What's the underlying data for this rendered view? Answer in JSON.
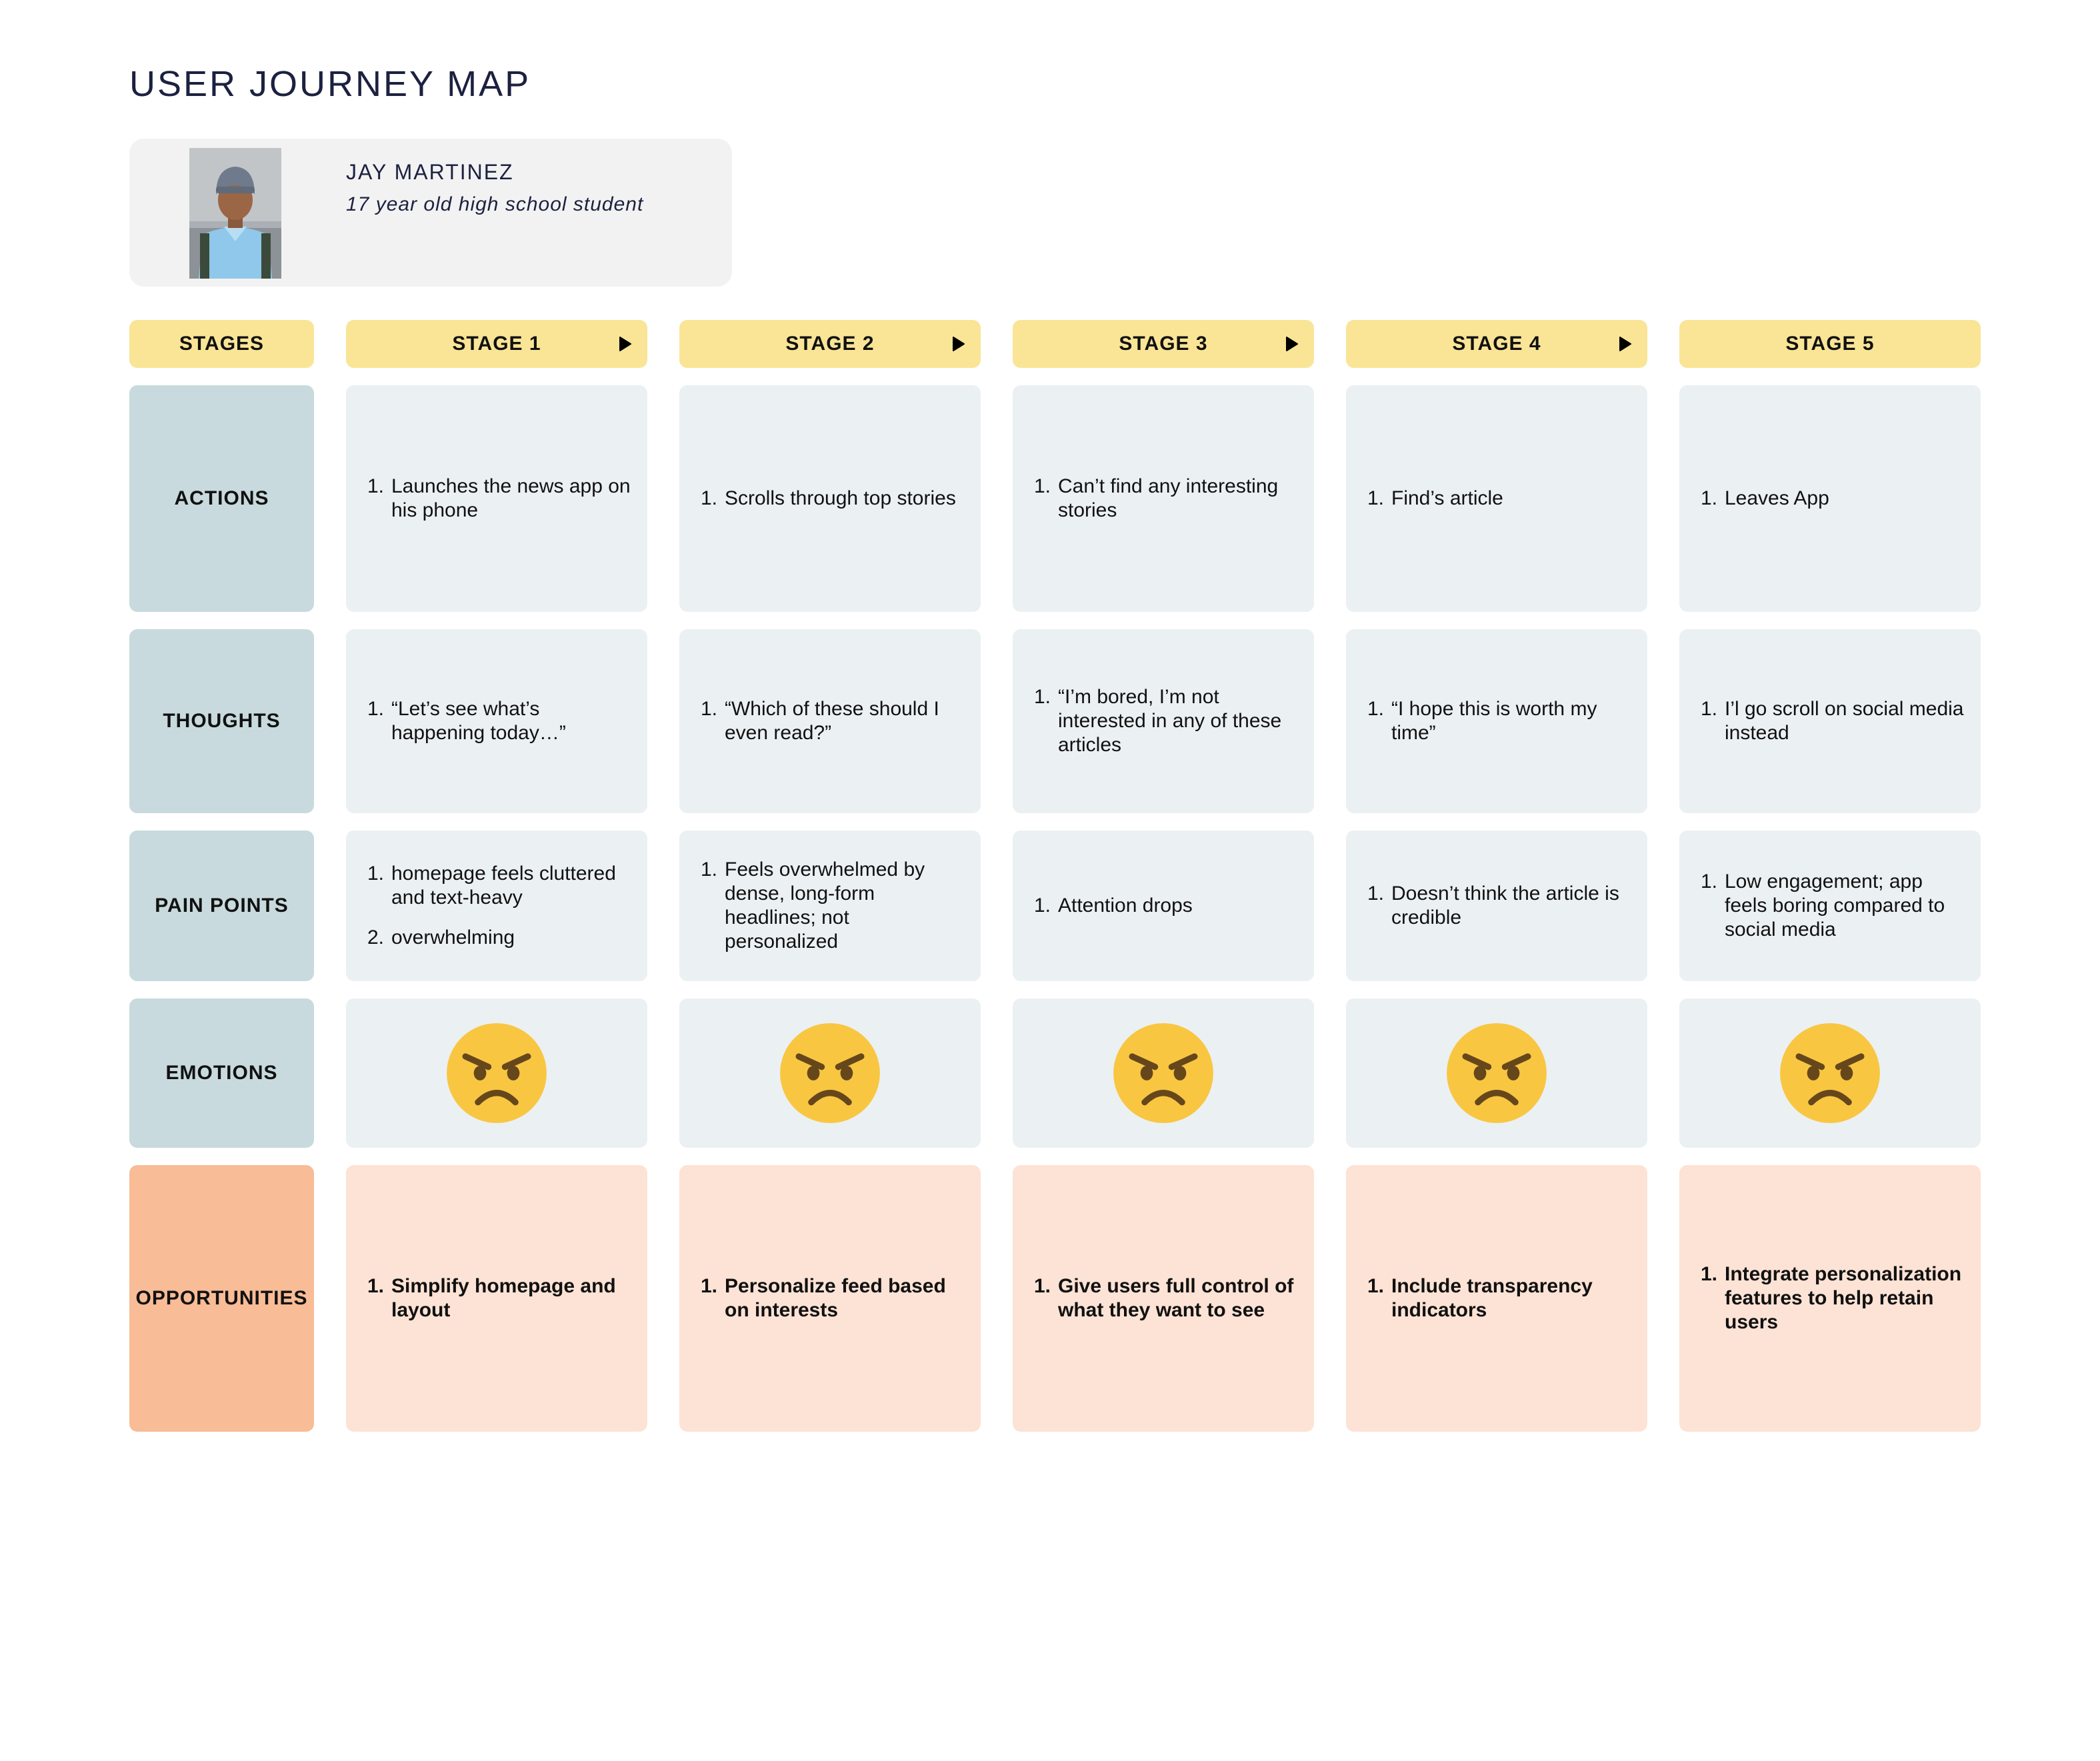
{
  "title": "USER JOURNEY MAP",
  "persona": {
    "name": "JAY MARTINEZ",
    "description": "17 year old high school student"
  },
  "stages_label": "STAGES",
  "stages": [
    "STAGE 1",
    "STAGE 2",
    "STAGE 3",
    "STAGE 4",
    "STAGE 5"
  ],
  "colors": {
    "stage_header": "#fae596",
    "row_label": "#c8dadd",
    "opportunity_label": "#f8bc96",
    "cell": "#ebf0f2",
    "opportunity_cell": "#fde3d5",
    "emoji_face": "#f8c641"
  },
  "rows": [
    {
      "label": "ACTIONS",
      "cells": [
        [
          "Launches the news app on his phone"
        ],
        [
          "Scrolls through top stories"
        ],
        [
          "Can’t find any interesting stories"
        ],
        [
          "Find’s article"
        ],
        [
          "Leaves App"
        ]
      ]
    },
    {
      "label": "THOUGHTS",
      "cells": [
        [
          "“Let’s see what’s happening today…”"
        ],
        [
          "“Which of these should I even read?”"
        ],
        [
          "“I’m bored, I’m not interested in any of these articles"
        ],
        [
          "“I hope this is worth my time”"
        ],
        [
          "I’l go scroll on social media instead"
        ]
      ]
    },
    {
      "label": "PAIN POINTS",
      "cells": [
        [
          "homepage feels cluttered and text-heavy",
          "overwhelming"
        ],
        [
          "Feels overwhelmed by dense, long-form headlines; not personalized"
        ],
        [
          "Attention drops"
        ],
        [
          "Doesn’t think the article is credible"
        ],
        [
          "Low engagement; app feels boring compared to social media"
        ]
      ]
    },
    {
      "label": "EMOTIONS",
      "emotions": [
        "angry-face-icon",
        "angry-face-icon",
        "angry-face-icon",
        "angry-face-icon",
        "angry-face-icon"
      ]
    },
    {
      "label": "OPPORTUNITIES",
      "cells": [
        [
          "Simplify homepage and layout"
        ],
        [
          "Personalize feed based on interests"
        ],
        [
          "Give users full control of what they want to see"
        ],
        [
          "Include transparency indicators"
        ],
        [
          "Integrate personalization features to help retain users"
        ]
      ]
    }
  ]
}
